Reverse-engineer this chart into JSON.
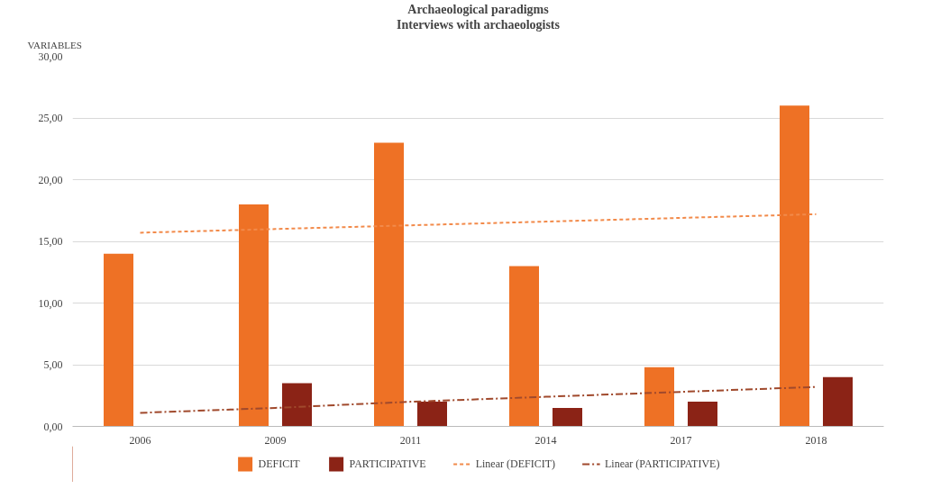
{
  "chart_data": {
    "type": "bar",
    "title": "Archaeological paradigms",
    "subtitle": "Interviews with archaeologists",
    "ylabel": "VARIABLES",
    "categories": [
      "2006",
      "2009",
      "2011",
      "2014",
      "2017",
      "2018"
    ],
    "series": [
      {
        "name": "DEFICIT",
        "color": "#ee7125",
        "values": [
          14,
          18,
          23,
          13,
          4.8,
          26
        ]
      },
      {
        "name": "PARTICIPATIVE",
        "color": "#8b2316",
        "values": [
          0,
          3.5,
          2,
          1.5,
          2,
          4
        ]
      },
      {
        "name": "Linear (DEFICIT)",
        "type": "line",
        "line_style": "dashed",
        "color": "#f28a4a",
        "values": [
          15.7,
          16.0,
          16.3,
          16.6,
          16.9,
          17.2
        ]
      },
      {
        "name": "Linear (PARTICIPATIVE)",
        "type": "line",
        "line_style": "dashdot",
        "color": "#a0492c",
        "values": [
          1.1,
          1.5,
          2.0,
          2.4,
          2.8,
          3.2
        ]
      }
    ],
    "ylim": [
      0,
      30
    ],
    "yticks": [
      {
        "value": 0,
        "label": "0,00"
      },
      {
        "value": 5,
        "label": "5,00"
      },
      {
        "value": 10,
        "label": "10,00"
      },
      {
        "value": 15,
        "label": "15,00"
      },
      {
        "value": 20,
        "label": "20,00"
      },
      {
        "value": 25,
        "label": "25,00"
      },
      {
        "value": 30,
        "label": "30,00"
      }
    ],
    "grid": "y",
    "legend": "bottom"
  }
}
